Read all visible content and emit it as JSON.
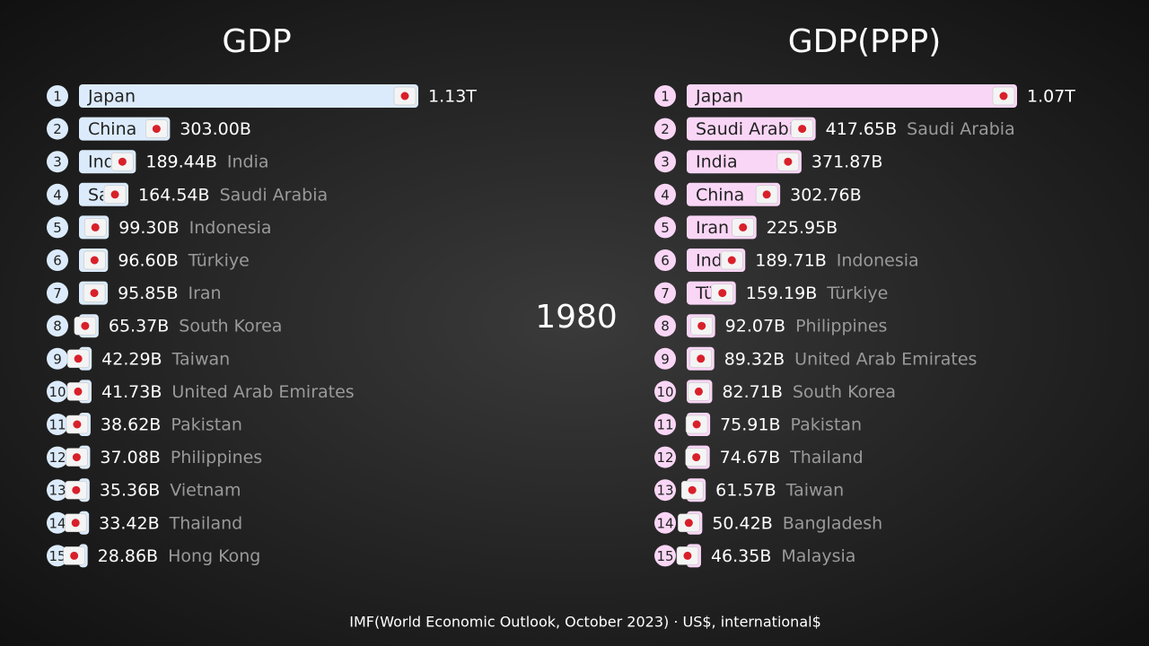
{
  "year": "1980",
  "source": "IMF(World Economic Outlook, October 2023) · US$, international$",
  "chart_data": [
    {
      "type": "bar",
      "title": "GDP",
      "color": "#dcebfb",
      "ranks": [
        1,
        2,
        3,
        4,
        5,
        6,
        7,
        8,
        9,
        10,
        11,
        12,
        13,
        14,
        15
      ],
      "categories": [
        "Japan",
        "China",
        "India",
        "Saudi Arabia",
        "Indonesia",
        "Türkiye",
        "Iran",
        "South Korea",
        "Taiwan",
        "United Arab Emirates",
        "Pakistan",
        "Philippines",
        "Vietnam",
        "Thailand",
        "Hong Kong"
      ],
      "values": [
        1130,
        303.0,
        189.44,
        164.54,
        99.3,
        96.6,
        95.85,
        65.37,
        42.29,
        41.73,
        38.62,
        37.08,
        35.36,
        33.42,
        28.86
      ],
      "value_labels": [
        "1.13T",
        "303.00B",
        "189.44B",
        "164.54B",
        "99.30B",
        "96.60B",
        "95.85B",
        "65.37B",
        "42.29B",
        "41.73B",
        "38.62B",
        "37.08B",
        "35.36B",
        "33.42B",
        "28.86B"
      ]
    },
    {
      "type": "bar",
      "title": "GDP(PPP)",
      "color": "#fad6f6",
      "ranks": [
        1,
        2,
        3,
        4,
        5,
        6,
        7,
        8,
        9,
        10,
        11,
        12,
        13,
        14,
        15
      ],
      "categories": [
        "Japan",
        "Saudi Arabia",
        "India",
        "China",
        "Iran",
        "Indonesia",
        "Türkiye",
        "Philippines",
        "United Arab Emirates",
        "South Korea",
        "Pakistan",
        "Thailand",
        "Taiwan",
        "Bangladesh",
        "Malaysia"
      ],
      "values": [
        1070,
        417.65,
        371.87,
        302.76,
        225.95,
        189.71,
        159.19,
        92.07,
        89.32,
        82.71,
        75.91,
        74.67,
        61.57,
        50.42,
        46.35
      ],
      "value_labels": [
        "1.07T",
        "417.65B",
        "371.87B",
        "302.76B",
        "225.95B",
        "189.71B",
        "159.19B",
        "92.07B",
        "89.32B",
        "82.71B",
        "75.91B",
        "74.67B",
        "61.57B",
        "50.42B",
        "46.35B"
      ]
    }
  ]
}
